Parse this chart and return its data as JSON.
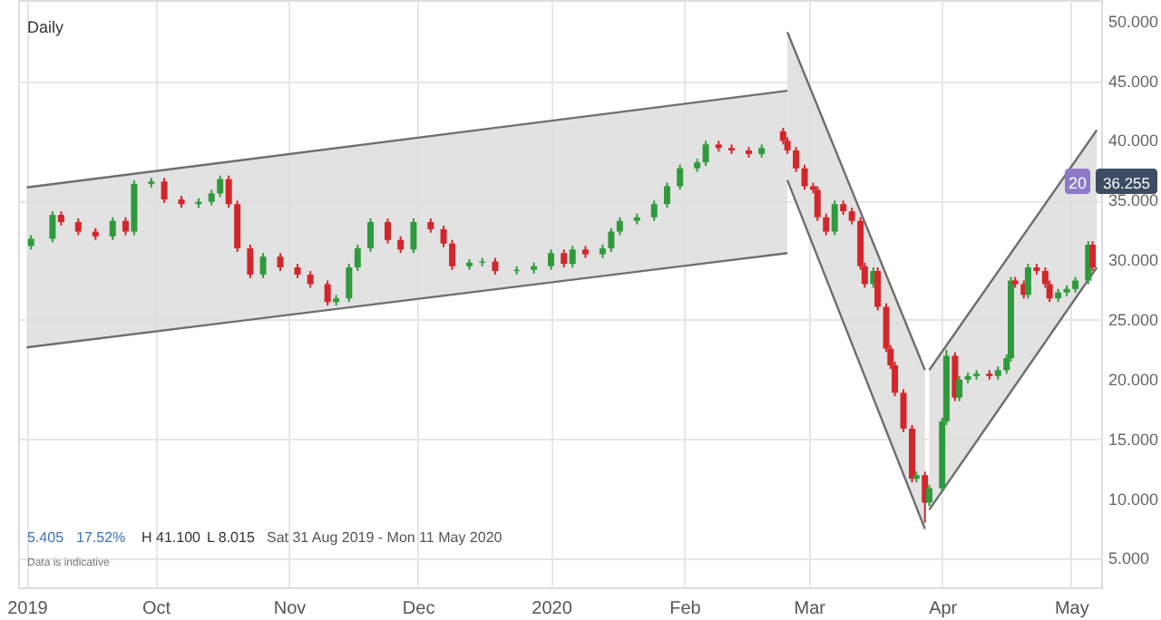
{
  "chart_data": {
    "type": "candlestick",
    "title": "Daily",
    "x": [
      "2019-09-02",
      "2019-09-07",
      "2019-09-09",
      "2019-09-13",
      "2019-09-17",
      "2019-09-21",
      "2019-09-24",
      "2019-09-26",
      "2019-09-30",
      "2019-10-03",
      "2019-10-07",
      "2019-10-11",
      "2019-10-14",
      "2019-10-16",
      "2019-10-18",
      "2019-10-20",
      "2019-10-23",
      "2019-10-26",
      "2019-10-30",
      "2019-11-03",
      "2019-11-06",
      "2019-11-10",
      "2019-11-12",
      "2019-11-15",
      "2019-11-17",
      "2019-11-20",
      "2019-11-24",
      "2019-11-27",
      "2019-11-30",
      "2019-12-04",
      "2019-12-07",
      "2019-12-09",
      "2019-12-13",
      "2019-12-16",
      "2019-12-19",
      "2019-12-24",
      "2019-12-28",
      "2020-01-01",
      "2020-01-04",
      "2020-01-06",
      "2020-01-09",
      "2020-01-13",
      "2020-01-15",
      "2020-01-17",
      "2020-01-21",
      "2020-01-25",
      "2020-01-28",
      "2020-01-31",
      "2020-02-04",
      "2020-02-06",
      "2020-02-09",
      "2020-02-12",
      "2020-02-16",
      "2020-02-19",
      "2020-02-24",
      "2020-02-25",
      "2020-02-27",
      "2020-02-29",
      "2020-03-02",
      "2020-03-03",
      "2020-03-05",
      "2020-03-07",
      "2020-03-09",
      "2020-03-11",
      "2020-03-13",
      "2020-03-14",
      "2020-03-16",
      "2020-03-17",
      "2020-03-19",
      "2020-03-20",
      "2020-03-21",
      "2020-03-23",
      "2020-03-25",
      "2020-03-26",
      "2020-03-28",
      "2020-03-29",
      "2020-04-01",
      "2020-04-02",
      "2020-04-04",
      "2020-04-05",
      "2020-04-07",
      "2020-04-09",
      "2020-04-12",
      "2020-04-14",
      "2020-04-16",
      "2020-04-17",
      "2020-04-18",
      "2020-04-20",
      "2020-04-21",
      "2020-04-23",
      "2020-04-25",
      "2020-04-26",
      "2020-04-28",
      "2020-04-30",
      "2020-05-02",
      "2020-05-05",
      "2020-05-06"
    ],
    "ohlc": [
      [
        31.2,
        32.1,
        30.9,
        31.8
      ],
      [
        31.8,
        34.1,
        31.5,
        33.8
      ],
      [
        33.8,
        34.1,
        32.9,
        33.2
      ],
      [
        33.2,
        33.5,
        32.1,
        32.4
      ],
      [
        32.4,
        32.7,
        31.7,
        32.0
      ],
      [
        32.0,
        33.6,
        31.7,
        33.3
      ],
      [
        33.3,
        33.6,
        32.1,
        32.4
      ],
      [
        32.4,
        36.7,
        32.1,
        36.4
      ],
      [
        36.4,
        36.9,
        36.1,
        36.6
      ],
      [
        36.6,
        36.9,
        34.8,
        35.1
      ],
      [
        35.1,
        35.4,
        34.4,
        34.7
      ],
      [
        34.7,
        35.2,
        34.4,
        34.9
      ],
      [
        34.9,
        35.9,
        34.6,
        35.6
      ],
      [
        35.6,
        37.1,
        35.3,
        36.8
      ],
      [
        36.8,
        37.1,
        34.4,
        34.7
      ],
      [
        34.7,
        35.0,
        30.7,
        31.0
      ],
      [
        31.0,
        31.3,
        28.5,
        28.8
      ],
      [
        28.8,
        30.6,
        28.5,
        30.3
      ],
      [
        30.3,
        30.6,
        29.1,
        29.4
      ],
      [
        29.4,
        29.7,
        28.5,
        28.8
      ],
      [
        28.8,
        29.1,
        27.7,
        28.0
      ],
      [
        28.0,
        28.3,
        26.2,
        26.5
      ],
      [
        26.5,
        27.1,
        26.2,
        26.8
      ],
      [
        26.8,
        29.7,
        26.5,
        29.4
      ],
      [
        29.4,
        31.3,
        29.1,
        31.0
      ],
      [
        31.0,
        33.5,
        30.7,
        33.2
      ],
      [
        33.2,
        33.5,
        31.4,
        31.7
      ],
      [
        31.7,
        32.0,
        30.6,
        30.9
      ],
      [
        30.9,
        33.5,
        30.6,
        33.2
      ],
      [
        33.2,
        33.5,
        32.3,
        32.6
      ],
      [
        32.6,
        32.9,
        31.1,
        31.4
      ],
      [
        31.4,
        31.7,
        29.2,
        29.5
      ],
      [
        29.5,
        30.1,
        29.2,
        29.8
      ],
      [
        29.8,
        30.2,
        29.5,
        29.9
      ],
      [
        29.9,
        30.2,
        28.8,
        29.1
      ],
      [
        29.1,
        29.5,
        28.8,
        29.2
      ],
      [
        29.2,
        29.8,
        28.9,
        29.5
      ],
      [
        29.5,
        30.9,
        29.2,
        30.6
      ],
      [
        30.6,
        30.9,
        29.4,
        29.7
      ],
      [
        29.7,
        31.2,
        29.4,
        30.9
      ],
      [
        30.9,
        31.2,
        30.2,
        30.5
      ],
      [
        30.5,
        31.3,
        30.2,
        31.0
      ],
      [
        31.0,
        32.7,
        30.7,
        32.4
      ],
      [
        32.4,
        33.6,
        32.1,
        33.3
      ],
      [
        33.3,
        33.9,
        33.0,
        33.6
      ],
      [
        33.6,
        35.0,
        33.3,
        34.7
      ],
      [
        34.7,
        36.5,
        34.4,
        36.2
      ],
      [
        36.2,
        38.0,
        35.9,
        37.7
      ],
      [
        37.7,
        38.5,
        37.4,
        38.2
      ],
      [
        38.2,
        40.0,
        37.9,
        39.7
      ],
      [
        39.7,
        40.0,
        39.1,
        39.4
      ],
      [
        39.4,
        39.7,
        38.9,
        39.2
      ],
      [
        39.2,
        39.5,
        38.6,
        38.9
      ],
      [
        38.9,
        39.7,
        38.6,
        39.4
      ],
      [
        40.8,
        41.1,
        39.7,
        40.0
      ],
      [
        40.0,
        40.3,
        38.9,
        39.2
      ],
      [
        39.2,
        39.5,
        37.4,
        37.7
      ],
      [
        37.7,
        38.0,
        35.9,
        36.2
      ],
      [
        36.2,
        36.5,
        35.6,
        35.9
      ],
      [
        35.9,
        36.2,
        33.3,
        33.6
      ],
      [
        33.6,
        33.9,
        32.1,
        32.4
      ],
      [
        32.4,
        35.0,
        32.1,
        34.7
      ],
      [
        34.7,
        35.0,
        33.8,
        34.1
      ],
      [
        34.1,
        34.4,
        33.0,
        33.3
      ],
      [
        33.3,
        33.6,
        29.2,
        29.5
      ],
      [
        29.5,
        29.8,
        27.7,
        28.0
      ],
      [
        28.0,
        29.4,
        27.7,
        29.1
      ],
      [
        29.1,
        29.4,
        25.8,
        26.1
      ],
      [
        26.1,
        26.4,
        22.3,
        22.6
      ],
      [
        22.6,
        22.9,
        20.9,
        21.2
      ],
      [
        21.2,
        21.5,
        18.6,
        18.9
      ],
      [
        18.9,
        19.2,
        15.6,
        15.9
      ],
      [
        15.9,
        16.2,
        11.4,
        11.7
      ],
      [
        11.7,
        12.3,
        11.4,
        12.0
      ],
      [
        12.0,
        12.3,
        8.015,
        9.7
      ],
      [
        9.7,
        11.2,
        9.4,
        10.9
      ],
      [
        10.9,
        16.8,
        10.6,
        16.5
      ],
      [
        16.5,
        22.5,
        16.2,
        22.0
      ],
      [
        22.0,
        22.3,
        18.2,
        18.5
      ],
      [
        18.5,
        20.3,
        18.2,
        20.0
      ],
      [
        20.0,
        20.6,
        19.7,
        20.3
      ],
      [
        20.3,
        20.8,
        20.0,
        20.5
      ],
      [
        20.5,
        20.8,
        20.0,
        20.3
      ],
      [
        20.3,
        21.1,
        20.0,
        20.8
      ],
      [
        20.8,
        22.1,
        20.5,
        21.8
      ],
      [
        21.8,
        28.6,
        21.5,
        28.3
      ],
      [
        28.3,
        28.6,
        27.7,
        28.0
      ],
      [
        28.0,
        28.3,
        26.8,
        27.1
      ],
      [
        27.1,
        29.7,
        26.8,
        29.4
      ],
      [
        29.4,
        29.7,
        28.8,
        29.1
      ],
      [
        29.1,
        29.4,
        27.7,
        28.0
      ],
      [
        28.0,
        28.3,
        26.5,
        26.8
      ],
      [
        26.8,
        27.6,
        26.5,
        27.3
      ],
      [
        27.3,
        27.9,
        27.0,
        27.6
      ],
      [
        27.6,
        28.6,
        27.3,
        28.3
      ],
      [
        28.3,
        31.6,
        28.0,
        31.3
      ],
      [
        31.3,
        31.6,
        29.1,
        29.4
      ]
    ],
    "series": [
      {
        "type": "line",
        "color": "#6e6e6e",
        "x": [
          "2019-09-01",
          "2020-02-25"
        ],
        "values": [
          36.1,
          44.2
        ],
        "lower": [
          22.7,
          30.6
        ],
        "upper": [
          36.1,
          44.2
        ]
      },
      {
        "type": "line",
        "color": "#6e6e6e",
        "x": [
          "2019-09-01",
          "2020-02-25"
        ],
        "values": [
          22.7,
          30.6
        ]
      },
      {
        "type": "line",
        "color": "#6e6e6e",
        "x": [
          "2020-02-25",
          "2020-03-28"
        ],
        "values": [
          49.1,
          20.8
        ],
        "lower": [
          36.7,
          7.5
        ],
        "upper": [
          49.1,
          20.8
        ]
      },
      {
        "type": "line",
        "color": "#6e6e6e",
        "x": [
          "2020-02-25",
          "2020-03-28"
        ],
        "values": [
          36.7,
          7.5
        ]
      },
      {
        "type": "line",
        "color": "#6e6e6e",
        "x": [
          "2020-03-29",
          "2020-05-07"
        ],
        "values": [
          20.8,
          40.9
        ],
        "lower": [
          9.1,
          29.4
        ],
        "upper": [
          20.8,
          40.9
        ]
      },
      {
        "type": "line",
        "color": "#6e6e6e",
        "x": [
          "2020-03-29",
          "2020-05-07"
        ],
        "values": [
          9.1,
          29.4
        ]
      }
    ],
    "xlim": [
      "2019-08-30",
      "2020-05-08"
    ],
    "xticks": [
      {
        "value": "2019-09-01",
        "label": "2019"
      },
      {
        "value": "2019-10-01",
        "label": "Oct"
      },
      {
        "value": "2019-11-01",
        "label": "Nov"
      },
      {
        "value": "2019-12-01",
        "label": "Dec"
      },
      {
        "value": "2020-01-01",
        "label": "2020"
      },
      {
        "value": "2020-02-01",
        "label": "Feb"
      },
      {
        "value": "2020-03-01",
        "label": "Mar"
      },
      {
        "value": "2020-04-01",
        "label": "Apr"
      },
      {
        "value": "2020-05-01",
        "label": "May"
      }
    ],
    "ylim": [
      2.6,
      51.8
    ],
    "yticks": [
      {
        "value": 5,
        "label": "5.000"
      },
      {
        "value": 10,
        "label": "10.000"
      },
      {
        "value": 15,
        "label": "15.000"
      },
      {
        "value": 20,
        "label": "20.000"
      },
      {
        "value": 25,
        "label": "25.000"
      },
      {
        "value": 30,
        "label": "30.000"
      },
      {
        "value": 35,
        "label": "35.000"
      },
      {
        "value": 40,
        "label": "40.000"
      },
      {
        "value": 45,
        "label": "45.000"
      },
      {
        "value": 50,
        "label": "50.000"
      }
    ],
    "grid": true,
    "annotations": [
      "20",
      "36.255",
      "5.405",
      "17.52%",
      "H 41.100",
      "L 8.015",
      "Sat 31 Aug 2019 - Mon 11 May 2020",
      "Data is indicative"
    ]
  }
}
